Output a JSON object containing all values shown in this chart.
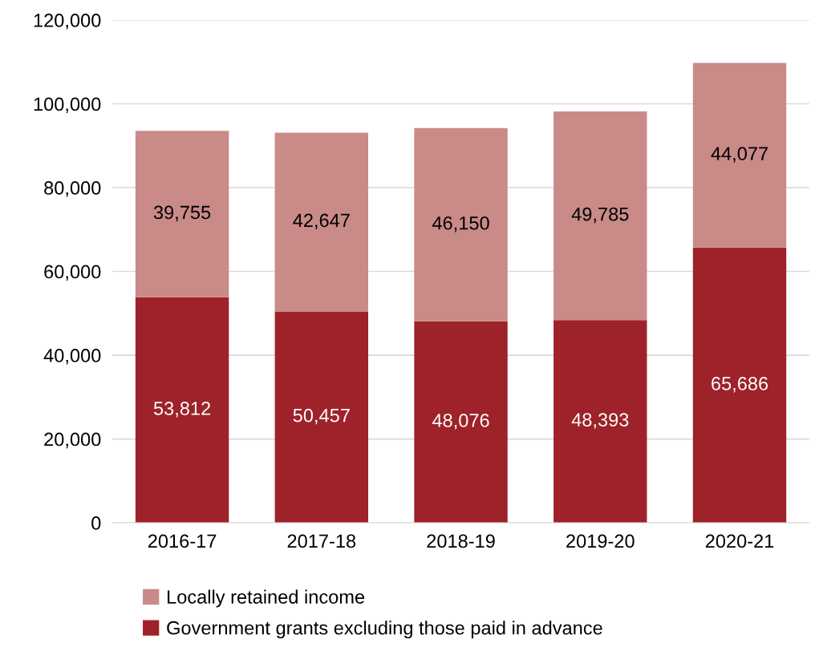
{
  "chart_data": {
    "type": "bar",
    "stacked": true,
    "categories": [
      "2016-17",
      "2017-18",
      "2018-19",
      "2019-20",
      "2020-21"
    ],
    "series": [
      {
        "name": "Government grants excluding those paid in advance",
        "color": "#9e2229",
        "values": [
          53812,
          50457,
          48076,
          48393,
          65686
        ],
        "value_labels": [
          "53,812",
          "50,457",
          "48,076",
          "48,393",
          "65,686"
        ]
      },
      {
        "name": "Locally retained income",
        "color": "#c98a88",
        "values": [
          39755,
          42647,
          46150,
          49785,
          44077
        ],
        "value_labels": [
          "39,755",
          "42,647",
          "46,150",
          "49,785",
          "44,077"
        ]
      }
    ],
    "ylim": [
      0,
      120000
    ],
    "yticks": [
      0,
      {
        "value": 20000,
        "label": "20,000"
      },
      {
        "value": 40000,
        "label": "40,000"
      },
      {
        "value": 60000,
        "label": "60,000"
      },
      {
        "value": 80000,
        "label": "80,000"
      },
      {
        "value": 100000,
        "label": "100,000"
      },
      {
        "value": 120000,
        "label": "120,000"
      }
    ],
    "grid": "y",
    "legend": "bottom"
  }
}
